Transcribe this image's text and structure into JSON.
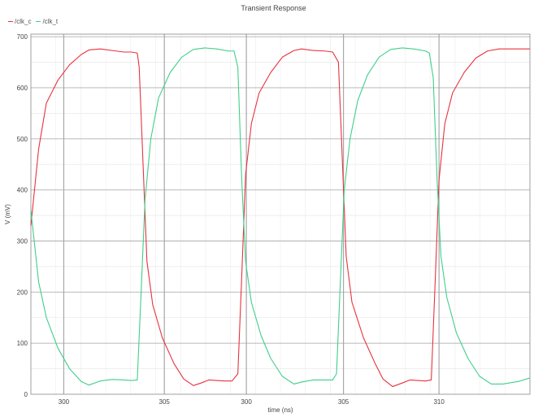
{
  "chart_data": {
    "type": "line",
    "title": "Transient Response",
    "xlabel": "time (ns)",
    "ylabel": "V (mV)",
    "xlim": [
      297.1,
      310.0
    ],
    "ylim": [
      0,
      705
    ],
    "x_ticks": [
      300,
      305,
      310
    ],
    "x_tick_labels": [
      "300",
      "305",
      "300",
      "305",
      "310"
    ],
    "x_tick_values": [
      299.9,
      300.0,
      302.5,
      305.0,
      310.0
    ],
    "x_tick_labels_display": [
      {
        "value": 297.95,
        "label": "300"
      },
      {
        "value": 300.55,
        "label": "305"
      },
      {
        "value": 302.67,
        "label": "300"
      },
      {
        "value": 305.18,
        "label": "305"
      },
      {
        "value": 307.65,
        "label": "310"
      }
    ],
    "y_ticks": [
      0,
      100,
      200,
      300,
      400,
      500,
      600,
      700
    ],
    "grid": true,
    "legend_placement": "top-left",
    "series": [
      {
        "name": "/clk_c",
        "color": "#e8323c",
        "points": [
          [
            297.1,
            330
          ],
          [
            297.3,
            480
          ],
          [
            297.5,
            570
          ],
          [
            297.8,
            615
          ],
          [
            298.1,
            645
          ],
          [
            298.4,
            665
          ],
          [
            298.6,
            674
          ],
          [
            298.9,
            676
          ],
          [
            299.2,
            673
          ],
          [
            299.5,
            670
          ],
          [
            299.7,
            670
          ],
          [
            299.85,
            668
          ],
          [
            299.9,
            640
          ],
          [
            300.0,
            450
          ],
          [
            300.1,
            260
          ],
          [
            300.25,
            175
          ],
          [
            300.5,
            110
          ],
          [
            300.8,
            60
          ],
          [
            301.05,
            30
          ],
          [
            301.3,
            17
          ],
          [
            301.5,
            22
          ],
          [
            301.7,
            28
          ],
          [
            301.9,
            27
          ],
          [
            302.1,
            26
          ],
          [
            302.3,
            26
          ],
          [
            302.45,
            40
          ],
          [
            302.55,
            230
          ],
          [
            302.65,
            430
          ],
          [
            302.8,
            530
          ],
          [
            303.0,
            590
          ],
          [
            303.3,
            630
          ],
          [
            303.6,
            660
          ],
          [
            303.9,
            673
          ],
          [
            304.1,
            676
          ],
          [
            304.4,
            673
          ],
          [
            304.7,
            672
          ],
          [
            304.9,
            670
          ],
          [
            305.05,
            650
          ],
          [
            305.15,
            460
          ],
          [
            305.25,
            270
          ],
          [
            305.4,
            180
          ],
          [
            305.7,
            110
          ],
          [
            306.0,
            60
          ],
          [
            306.2,
            30
          ],
          [
            306.45,
            15
          ],
          [
            306.7,
            22
          ],
          [
            306.9,
            28
          ],
          [
            307.1,
            27
          ],
          [
            307.3,
            26
          ],
          [
            307.45,
            28
          ],
          [
            307.55,
            220
          ],
          [
            307.65,
            420
          ],
          [
            307.8,
            530
          ],
          [
            308.0,
            590
          ],
          [
            308.3,
            630
          ],
          [
            308.6,
            658
          ],
          [
            308.9,
            672
          ],
          [
            309.2,
            676
          ],
          [
            309.6,
            676
          ],
          [
            310.0,
            676
          ]
        ]
      },
      {
        "name": "/clk_t",
        "color": "#3fcf8a",
        "points": [
          [
            297.1,
            360
          ],
          [
            297.3,
            220
          ],
          [
            297.5,
            150
          ],
          [
            297.8,
            90
          ],
          [
            298.1,
            50
          ],
          [
            298.4,
            25
          ],
          [
            298.6,
            18
          ],
          [
            298.9,
            26
          ],
          [
            299.2,
            29
          ],
          [
            299.5,
            28
          ],
          [
            299.7,
            27
          ],
          [
            299.85,
            28
          ],
          [
            299.95,
            200
          ],
          [
            300.05,
            380
          ],
          [
            300.2,
            500
          ],
          [
            300.4,
            580
          ],
          [
            300.7,
            630
          ],
          [
            301.0,
            660
          ],
          [
            301.3,
            675
          ],
          [
            301.6,
            678
          ],
          [
            301.9,
            676
          ],
          [
            302.2,
            672
          ],
          [
            302.35,
            672
          ],
          [
            302.45,
            640
          ],
          [
            302.55,
            420
          ],
          [
            302.65,
            260
          ],
          [
            302.8,
            180
          ],
          [
            303.05,
            115
          ],
          [
            303.3,
            70
          ],
          [
            303.6,
            35
          ],
          [
            303.9,
            20
          ],
          [
            304.1,
            24
          ],
          [
            304.4,
            28
          ],
          [
            304.7,
            28
          ],
          [
            304.9,
            28
          ],
          [
            305.0,
            40
          ],
          [
            305.1,
            220
          ],
          [
            305.2,
            400
          ],
          [
            305.35,
            500
          ],
          [
            305.55,
            575
          ],
          [
            305.8,
            625
          ],
          [
            306.1,
            660
          ],
          [
            306.4,
            675
          ],
          [
            306.7,
            678
          ],
          [
            307.0,
            676
          ],
          [
            307.3,
            672
          ],
          [
            307.4,
            668
          ],
          [
            307.5,
            620
          ],
          [
            307.6,
            420
          ],
          [
            307.7,
            270
          ],
          [
            307.85,
            190
          ],
          [
            308.1,
            120
          ],
          [
            308.4,
            70
          ],
          [
            308.7,
            35
          ],
          [
            309.0,
            20
          ],
          [
            309.3,
            20
          ],
          [
            309.7,
            25
          ],
          [
            310.0,
            32
          ]
        ]
      }
    ]
  }
}
